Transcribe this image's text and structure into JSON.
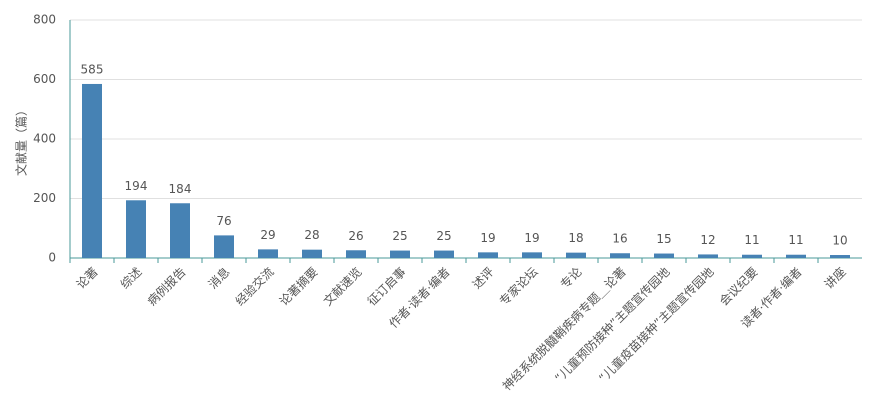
{
  "chart_data": {
    "type": "bar",
    "y_label": "文献量（篇）",
    "categories": [
      "论著",
      "综述",
      "病例报告",
      "消息",
      "经验交流",
      "论著摘要",
      "文献速览",
      "征订启事",
      "作者·读者·编者",
      "述评",
      "专家论坛",
      "专论",
      "神经系统脱髓鞘疾病专题＿论著",
      "“儿童预防接种”主题宣传园地",
      "“儿童疫苗接种”主题宣传园地",
      "会议纪要",
      "读者·作者·编者",
      "讲座"
    ],
    "values": [
      585,
      194,
      184,
      76,
      29,
      28,
      26,
      25,
      25,
      19,
      19,
      18,
      16,
      15,
      12,
      11,
      11,
      10
    ],
    "color": "#4682b4",
    "ylim": [
      0,
      800
    ],
    "yticks": [
      0,
      200,
      400,
      600,
      800
    ],
    "grid": true
  }
}
